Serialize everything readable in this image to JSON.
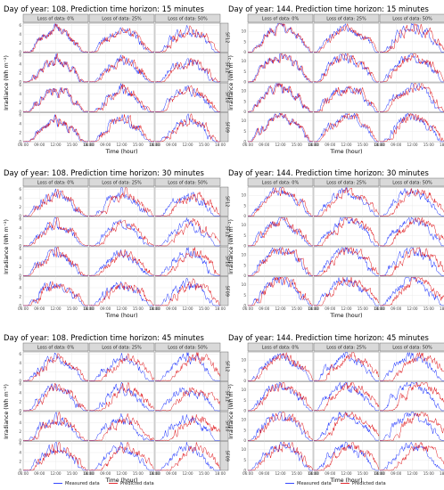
{
  "chart_data": {
    "type": "line",
    "rows_label": [
      "SF12",
      "SF11",
      "SF10",
      "SF09"
    ],
    "columns_label": [
      "Loss of data: 0%",
      "Loss of data: 25%",
      "Loss of data: 50%"
    ],
    "xlabel": "Time (hour)",
    "ylabel": "Irradiance (Wh m⁻²)",
    "x_ticks": [
      "06:00",
      "09:00",
      "12:00",
      "15:00",
      "18:00"
    ],
    "series_colors": {
      "measured": "#1f35ff",
      "predicted": "#e0161b"
    },
    "legend": {
      "measured": "Measured data",
      "predicted": "Predicted data",
      "position": "bottom"
    },
    "panels": [
      {
        "title": "Day of year: 108. Prediction time horizon: 15 minutes",
        "ylim": [
          0,
          6.5
        ],
        "y_ticks": [
          0,
          2,
          4,
          6
        ],
        "shape": "spring"
      },
      {
        "title": "Day of year: 144. Prediction time horizon: 15 minutes",
        "ylim": [
          0,
          14
        ],
        "y_ticks": [
          0,
          5,
          10
        ],
        "shape": "summer"
      },
      {
        "title": "Day of year: 108. Prediction time horizon: 30 minutes",
        "ylim": [
          0,
          6.5
        ],
        "y_ticks": [
          0,
          2,
          4,
          6
        ],
        "shape": "spring"
      },
      {
        "title": "Day of year: 144. Prediction time horizon: 30 minutes",
        "ylim": [
          0,
          14
        ],
        "y_ticks": [
          0,
          5,
          10
        ],
        "shape": "summer"
      },
      {
        "title": "Day of year: 108. Prediction time horizon: 45 minutes",
        "ylim": [
          0,
          6.5
        ],
        "y_ticks": [
          0,
          2,
          4,
          6
        ],
        "shape": "spring"
      },
      {
        "title": "Day of year: 144. Prediction time horizon: 45 minutes",
        "ylim": [
          0,
          14
        ],
        "y_ticks": [
          0,
          5,
          10
        ],
        "shape": "summer"
      }
    ]
  }
}
